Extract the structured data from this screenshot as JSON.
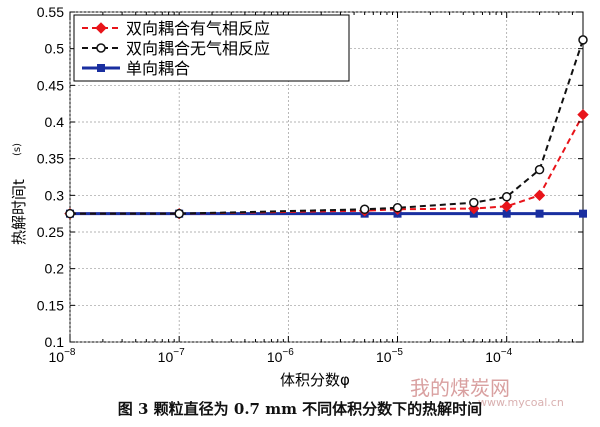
{
  "chart_data": {
    "type": "line",
    "xlabel": "体积分数φ",
    "ylabel": "热解时间t",
    "ylabel_unit": "(s)",
    "xscale": "log",
    "xlim": [
      1e-08,
      0.0005
    ],
    "ylim": [
      0.1,
      0.55
    ],
    "x_ticks": [
      1e-08,
      1e-07,
      1e-06,
      1e-05,
      0.0001
    ],
    "x_tick_labels": [
      {
        "base": "10",
        "exp": "−8"
      },
      {
        "base": "10",
        "exp": "−7"
      },
      {
        "base": "10",
        "exp": "−6"
      },
      {
        "base": "10",
        "exp": "−5"
      },
      {
        "base": "10",
        "exp": "−4"
      }
    ],
    "y_ticks": [
      0.1,
      0.15,
      0.2,
      0.25,
      0.3,
      0.35,
      0.4,
      0.45,
      0.5,
      0.55
    ],
    "y_tick_labels": [
      "0.1",
      "0.15",
      "0.2",
      "0.25",
      "0.3",
      "0.35",
      "0.4",
      "0.45",
      "0.5",
      "0.55"
    ],
    "legend_position": "top-left",
    "x": [
      1e-08,
      1e-07,
      5e-06,
      1e-05,
      5e-05,
      0.0001,
      0.0002,
      0.0005
    ],
    "series": [
      {
        "name": "双向耦合有气相反应",
        "color": "#e8141a",
        "dash": "dashed",
        "marker": "diamond",
        "values": [
          0.275,
          0.275,
          0.279,
          0.281,
          0.282,
          0.285,
          0.3,
          0.41
        ]
      },
      {
        "name": "双向耦合无气相反应",
        "color": "#111111",
        "dash": "dashed",
        "marker": "circle",
        "values": [
          0.275,
          0.275,
          0.281,
          0.283,
          0.29,
          0.298,
          0.335,
          0.512
        ]
      },
      {
        "name": "单向耦合",
        "color": "#1a2fa0",
        "dash": "solid",
        "marker": "square",
        "values": [
          0.275,
          0.275,
          0.275,
          0.275,
          0.275,
          0.275,
          0.275,
          0.275
        ]
      }
    ]
  },
  "caption": "图 3 颗粒直径为 0.7 mm 不同体积分数下的热解时间",
  "watermark": {
    "text": "我的煤炭网",
    "url": "www.mycoal.cn"
  }
}
